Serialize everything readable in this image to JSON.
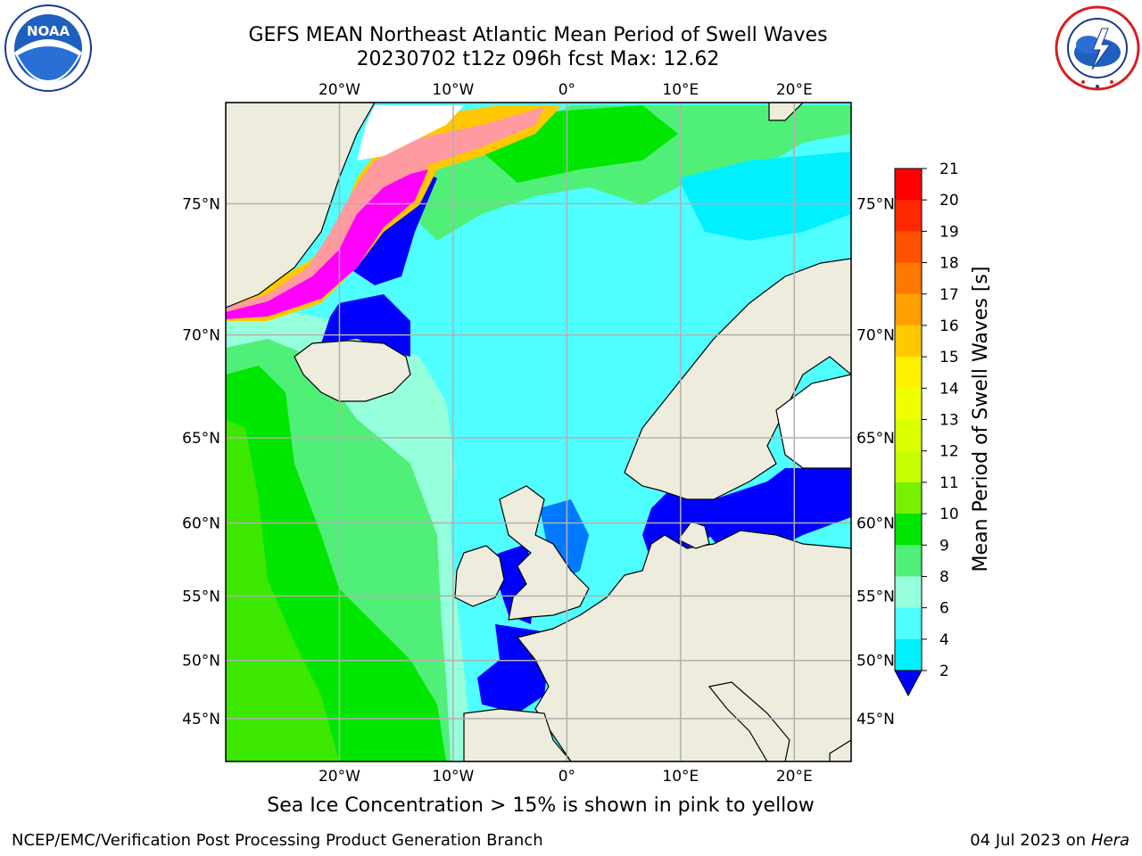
{
  "title_line1": "GEFS MEAN Northeast Atlantic Mean Period of Swell Waves",
  "title_line2": "20230702 t12z 096h fcst   Max: 12.62",
  "logos": {
    "left": {
      "name": "noaa-logo",
      "text": "NOAA",
      "ring_text": "NATIONAL OCEANIC AND ATMOSPHERIC ADMINISTRATION · U.S. DEPARTMENT OF COMMERCE"
    },
    "right": {
      "name": "nws-logo",
      "ring_text": "NATIONAL WEATHER SERVICE"
    }
  },
  "map": {
    "projection": "Mercator",
    "lon_range": [
      -30,
      25
    ],
    "lat_range": [
      41,
      78
    ],
    "grid": true,
    "top_lon_labels": [
      "20°W",
      "10°W",
      "0°",
      "10°E",
      "20°E"
    ],
    "bottom_lon_labels": [
      "20°W",
      "10°W",
      "0°",
      "10°E",
      "20°E"
    ],
    "left_lat_labels": [
      "75°N",
      "70°N",
      "65°N",
      "60°N",
      "55°N",
      "50°N",
      "45°N"
    ],
    "right_lat_labels": [
      "75°N",
      "70°N",
      "65°N",
      "60°N",
      "55°N",
      "50°N",
      "45°N"
    ],
    "land_color": "#eeecdc",
    "ice_color": "#ffffff"
  },
  "colorbar": {
    "label": "Mean Period of Swell Waves [s]",
    "ticks": [
      "21",
      "20",
      "19",
      "18",
      "17",
      "16",
      "15",
      "14",
      "13",
      "12",
      "11",
      "10",
      "9",
      "8",
      "6",
      "4",
      "2"
    ],
    "colors": [
      "#ff0000",
      "#ff2800",
      "#ff5000",
      "#ff7800",
      "#ffa000",
      "#ffc800",
      "#fff000",
      "#f0ff00",
      "#dcff00",
      "#c8ff00",
      "#78f000",
      "#00e600",
      "#50f078",
      "#96ffdc",
      "#50ffff",
      "#00f0ff",
      "#0078ff"
    ],
    "extend_color": "#0000ff"
  },
  "note": "Sea Ice Concentration > 15% is shown in pink to yellow",
  "footer_left": "NCEP/EMC/Verification Post Processing Product Generation Branch",
  "footer_right_prefix": "04 Jul 2023 on ",
  "footer_right_host": "Hera"
}
